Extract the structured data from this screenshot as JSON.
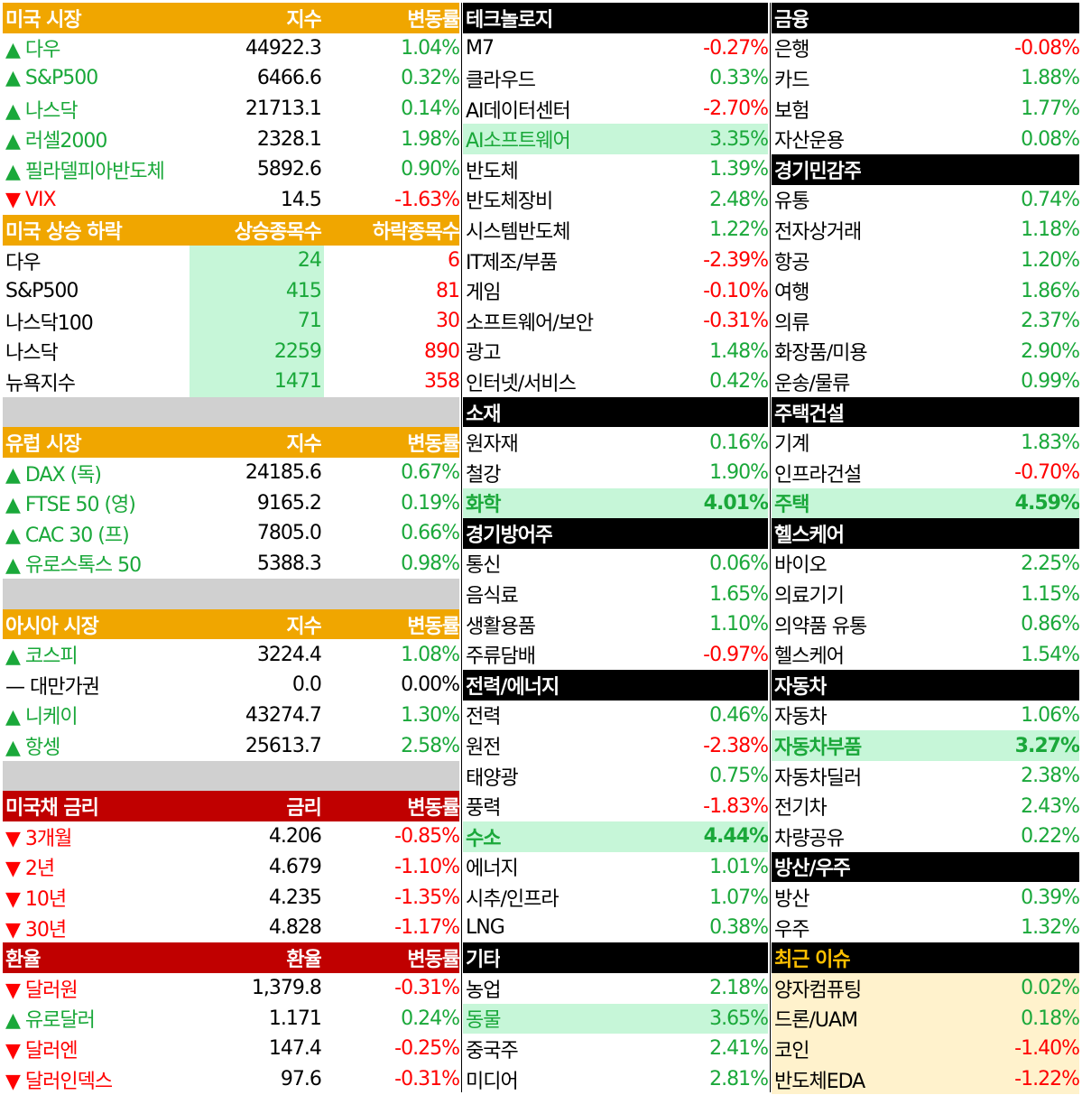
{
  "us_market": {
    "header": {
      "name": "미국 시장",
      "v1": "지수",
      "v2": "변동률"
    },
    "rows": [
      {
        "name": "▲ 다우",
        "v1": "44922.3",
        "v2": "1.04%",
        "dir": "pos"
      },
      {
        "name": "▲ S&P500",
        "v1": "6466.6",
        "v2": "0.32%",
        "dir": "pos"
      },
      {
        "name": "▲ 나스닥",
        "v1": "21713.1",
        "v2": "0.14%",
        "dir": "pos"
      },
      {
        "name": "▲ 러셀2000",
        "v1": "2328.1",
        "v2": "1.98%",
        "dir": "pos"
      },
      {
        "name": "▲ 필라델피아반도체",
        "v1": "5892.6",
        "v2": "0.90%",
        "dir": "pos"
      },
      {
        "name": "▼ VIX",
        "v1": "14.5",
        "v2": "-1.63%",
        "dir": "neg"
      }
    ]
  },
  "us_breadth": {
    "header": {
      "name": "미국 상승 하락",
      "v1": "상승종목수",
      "v2": "하락종목수"
    },
    "rows": [
      {
        "name": "다우",
        "v1": "24",
        "v2": "6"
      },
      {
        "name": "S&P500",
        "v1": "415",
        "v2": "81"
      },
      {
        "name": "나스닥100",
        "v1": "71",
        "v2": "30"
      },
      {
        "name": "나스닥",
        "v1": "2259",
        "v2": "890"
      },
      {
        "name": "뉴욕지수",
        "v1": "1471",
        "v2": "358"
      }
    ]
  },
  "europe": {
    "header": {
      "name": "유럽 시장",
      "v1": "지수",
      "v2": "변동률"
    },
    "rows": [
      {
        "name": "▲ DAX (독)",
        "v1": "24185.6",
        "v2": "0.67%",
        "dir": "pos"
      },
      {
        "name": "▲ FTSE 50 (영)",
        "v1": "9165.2",
        "v2": "0.19%",
        "dir": "pos"
      },
      {
        "name": "▲ CAC 30 (프)",
        "v1": "7805.0",
        "v2": "0.66%",
        "dir": "pos"
      },
      {
        "name": "▲ 유로스톡스 50",
        "v1": "5388.3",
        "v2": "0.98%",
        "dir": "pos"
      }
    ]
  },
  "asia": {
    "header": {
      "name": "아시아 시장",
      "v1": "지수",
      "v2": "변동률"
    },
    "rows": [
      {
        "name": "▲ 코스피",
        "v1": "3224.4",
        "v2": "1.08%",
        "dir": "pos"
      },
      {
        "name": "— 대만가권",
        "v1": "0.0",
        "v2": "0.00%",
        "dir": "blk"
      },
      {
        "name": "▲ 니케이",
        "v1": "43274.7",
        "v2": "1.30%",
        "dir": "pos"
      },
      {
        "name": "▲ 항셍",
        "v1": "25613.7",
        "v2": "2.58%",
        "dir": "pos"
      }
    ]
  },
  "treasury": {
    "header": {
      "name": "미국채 금리",
      "v1": "금리",
      "v2": "변동률"
    },
    "rows": [
      {
        "name": "▼ 3개월",
        "v1": "4.206",
        "v2": "-0.85%",
        "dir": "neg"
      },
      {
        "name": "▼ 2년",
        "v1": "4.679",
        "v2": "-1.10%",
        "dir": "neg"
      },
      {
        "name": "▼ 10년",
        "v1": "4.235",
        "v2": "-1.35%",
        "dir": "neg"
      },
      {
        "name": "▼ 30년",
        "v1": "4.828",
        "v2": "-1.17%",
        "dir": "neg"
      }
    ]
  },
  "fx": {
    "header": {
      "name": "환율",
      "v1": "환율",
      "v2": "변동률"
    },
    "rows": [
      {
        "name": "▼ 달러원",
        "v1": "1,379.8",
        "v2": "-0.31%",
        "dir": "neg"
      },
      {
        "name": "▲ 유로달러",
        "v1": "1.171",
        "v2": "0.24%",
        "dir": "pos"
      },
      {
        "name": "▼ 달러엔",
        "v1": "147.4",
        "v2": "-0.25%",
        "dir": "neg"
      },
      {
        "name": "▼ 달러인덱스",
        "v1": "97.6",
        "v2": "-0.31%",
        "dir": "neg"
      }
    ]
  },
  "col2": [
    {
      "type": "hdr",
      "name": "테크놀로지"
    },
    {
      "name": "M7",
      "pct": "-0.27%",
      "dir": "neg"
    },
    {
      "name": "클라우드",
      "pct": "0.33%",
      "dir": "pos"
    },
    {
      "name": "AI데이터센터",
      "pct": "-2.70%",
      "dir": "neg"
    },
    {
      "name": "AI소프트웨어",
      "pct": "3.35%",
      "dir": "pos",
      "hl": "hl"
    },
    {
      "name": "반도체",
      "pct": "1.39%",
      "dir": "pos"
    },
    {
      "name": "반도체장비",
      "pct": "2.48%",
      "dir": "pos"
    },
    {
      "name": "시스템반도체",
      "pct": "1.22%",
      "dir": "pos"
    },
    {
      "name": "IT제조/부품",
      "pct": "-2.39%",
      "dir": "neg"
    },
    {
      "name": "게임",
      "pct": "-0.10%",
      "dir": "neg"
    },
    {
      "name": "소프트웨어/보안",
      "pct": "-0.31%",
      "dir": "neg"
    },
    {
      "name": "광고",
      "pct": "1.48%",
      "dir": "pos"
    },
    {
      "name": "인터넷/서비스",
      "pct": "0.42%",
      "dir": "pos"
    },
    {
      "type": "hdr",
      "name": "소재"
    },
    {
      "name": "원자재",
      "pct": "0.16%",
      "dir": "pos"
    },
    {
      "name": "철강",
      "pct": "1.90%",
      "dir": "pos"
    },
    {
      "name": "화학",
      "pct": "4.01%",
      "dir": "pos",
      "hl": "hlb"
    },
    {
      "type": "hdr",
      "name": "경기방어주"
    },
    {
      "name": "통신",
      "pct": "0.06%",
      "dir": "pos"
    },
    {
      "name": "음식료",
      "pct": "1.65%",
      "dir": "pos"
    },
    {
      "name": "생활용품",
      "pct": "1.10%",
      "dir": "pos"
    },
    {
      "name": "주류담배",
      "pct": "-0.97%",
      "dir": "neg"
    },
    {
      "type": "hdr",
      "name": "전력/에너지"
    },
    {
      "name": "전력",
      "pct": "0.46%",
      "dir": "pos"
    },
    {
      "name": "원전",
      "pct": "-2.38%",
      "dir": "neg"
    },
    {
      "name": "태양광",
      "pct": "0.75%",
      "dir": "pos"
    },
    {
      "name": "풍력",
      "pct": "-1.83%",
      "dir": "neg"
    },
    {
      "name": "수소",
      "pct": "4.44%",
      "dir": "pos",
      "hl": "hlb"
    },
    {
      "name": "에너지",
      "pct": "1.01%",
      "dir": "pos"
    },
    {
      "name": "시추/인프라",
      "pct": "1.07%",
      "dir": "pos"
    },
    {
      "name": "LNG",
      "pct": "0.38%",
      "dir": "pos"
    },
    {
      "type": "hdr",
      "name": "기타"
    },
    {
      "name": "농업",
      "pct": "2.18%",
      "dir": "pos"
    },
    {
      "name": "동물",
      "pct": "3.65%",
      "dir": "pos",
      "hl": "hl"
    },
    {
      "name": "중국주",
      "pct": "2.41%",
      "dir": "pos"
    },
    {
      "name": "미디어",
      "pct": "2.81%",
      "dir": "pos"
    }
  ],
  "col3": [
    {
      "type": "hdr",
      "name": "금융"
    },
    {
      "name": "은행",
      "pct": "-0.08%",
      "dir": "neg"
    },
    {
      "name": "카드",
      "pct": "1.88%",
      "dir": "pos"
    },
    {
      "name": "보험",
      "pct": "1.77%",
      "dir": "pos"
    },
    {
      "name": "자산운용",
      "pct": "0.08%",
      "dir": "pos"
    },
    {
      "type": "hdr",
      "name": "경기민감주"
    },
    {
      "name": "유통",
      "pct": "0.74%",
      "dir": "pos"
    },
    {
      "name": "전자상거래",
      "pct": "1.18%",
      "dir": "pos"
    },
    {
      "name": "항공",
      "pct": "1.20%",
      "dir": "pos"
    },
    {
      "name": "여행",
      "pct": "1.86%",
      "dir": "pos"
    },
    {
      "name": "의류",
      "pct": "2.37%",
      "dir": "pos"
    },
    {
      "name": "화장품/미용",
      "pct": "2.90%",
      "dir": "pos"
    },
    {
      "name": "운송/물류",
      "pct": "0.99%",
      "dir": "pos"
    },
    {
      "type": "hdr",
      "name": "주택건설"
    },
    {
      "name": "기계",
      "pct": "1.83%",
      "dir": "pos"
    },
    {
      "name": "인프라건설",
      "pct": "-0.70%",
      "dir": "neg"
    },
    {
      "name": "주택",
      "pct": "4.59%",
      "dir": "pos",
      "hl": "hlb"
    },
    {
      "type": "hdr",
      "name": "헬스케어"
    },
    {
      "name": "바이오",
      "pct": "2.25%",
      "dir": "pos"
    },
    {
      "name": "의료기기",
      "pct": "1.15%",
      "dir": "pos"
    },
    {
      "name": "의약품 유통",
      "pct": "0.86%",
      "dir": "pos"
    },
    {
      "name": "헬스케어",
      "pct": "1.54%",
      "dir": "pos"
    },
    {
      "type": "hdr",
      "name": "자동차"
    },
    {
      "name": "자동차",
      "pct": "1.06%",
      "dir": "pos"
    },
    {
      "name": "자동차부품",
      "pct": "3.27%",
      "dir": "pos",
      "hl": "hlb"
    },
    {
      "name": "자동차딜러",
      "pct": "2.38%",
      "dir": "pos"
    },
    {
      "name": "전기차",
      "pct": "2.43%",
      "dir": "pos"
    },
    {
      "name": "차량공유",
      "pct": "0.22%",
      "dir": "pos"
    },
    {
      "type": "hdr",
      "name": "방산/우주"
    },
    {
      "name": "방산",
      "pct": "0.39%",
      "dir": "pos"
    },
    {
      "name": "우주",
      "pct": "1.32%",
      "dir": "pos"
    },
    {
      "type": "hdr",
      "name": "최근 이슈",
      "style": "hdr-y"
    },
    {
      "name": "양자컴퓨팅",
      "pct": "0.02%",
      "dir": "pos",
      "hl": "hly"
    },
    {
      "name": "드론/UAM",
      "pct": "0.18%",
      "dir": "pos",
      "hl": "hly"
    },
    {
      "name": "코인",
      "pct": "-1.40%",
      "dir": "neg",
      "hl": "hly"
    },
    {
      "name": "반도체EDA",
      "pct": "-1.22%",
      "dir": "neg",
      "hl": "hly"
    }
  ]
}
